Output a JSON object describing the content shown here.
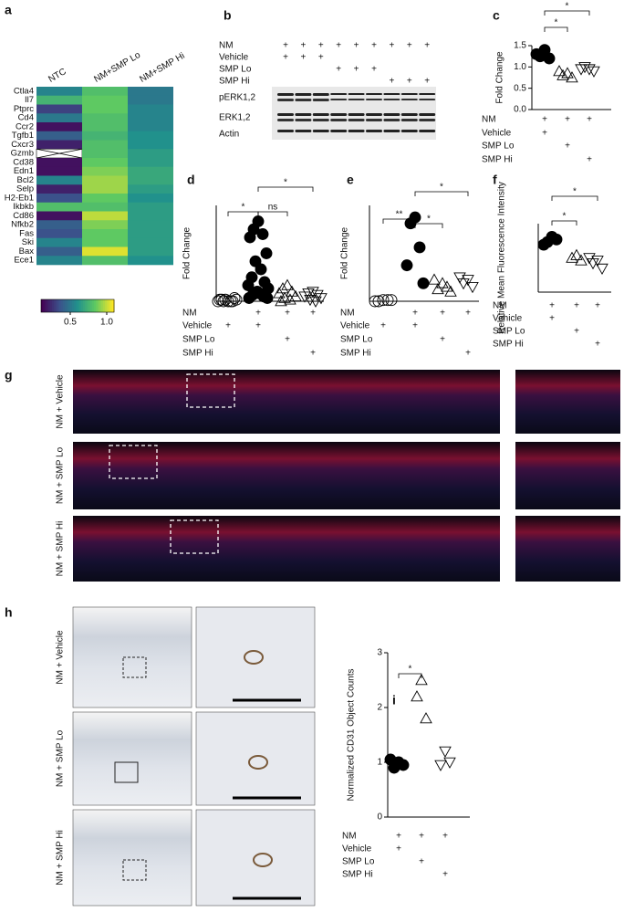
{
  "chart_data": [
    {
      "type": "heatmap",
      "panel": "a",
      "columns": [
        "NTC",
        "NM+SMP Lo",
        "NM+SMP Hi"
      ],
      "rows": [
        "Ctla4",
        "Il7",
        "Ptprc",
        "Cd4",
        "Ccr2",
        "Tgfb1",
        "Cxcr3",
        "Gzmb",
        "Cd38",
        "Edn1",
        "Bcl2",
        "Selp",
        "H2-Eb1",
        "Ikbkb",
        "Cd86",
        "Nfkb2",
        "Fas",
        "Ski",
        "Bax",
        "Ece1"
      ],
      "values": [
        [
          0.55,
          0.8,
          0.5
        ],
        [
          0.75,
          0.85,
          0.5
        ],
        [
          0.3,
          0.85,
          0.55
        ],
        [
          0.5,
          0.8,
          0.55
        ],
        [
          0.15,
          0.8,
          0.55
        ],
        [
          0.4,
          0.75,
          0.6
        ],
        [
          0.2,
          0.8,
          0.6
        ],
        [
          null,
          0.8,
          0.65
        ],
        [
          0.15,
          0.85,
          0.65
        ],
        [
          0.15,
          0.9,
          0.7
        ],
        [
          0.55,
          0.95,
          0.7
        ],
        [
          0.2,
          0.95,
          0.65
        ],
        [
          0.35,
          0.85,
          0.6
        ],
        [
          0.8,
          0.8,
          0.65
        ],
        [
          0.15,
          1.0,
          0.65
        ],
        [
          0.4,
          0.9,
          0.65
        ],
        [
          0.35,
          0.85,
          0.65
        ],
        [
          0.55,
          0.85,
          0.65
        ],
        [
          0.4,
          1.05,
          0.65
        ],
        [
          0.55,
          0.8,
          0.6
        ]
      ],
      "colormap": "viridis",
      "zlim": [
        0.1,
        1.1
      ],
      "zticks": [
        0.5,
        {
          "value": 1,
          "label": "1.0"
        }
      ]
    },
    {
      "type": "scatter",
      "panel": "c",
      "y_label": "Fold Change",
      "ylim": [
        0,
        1.5
      ],
      "yticks": [
        {
          "value": 0,
          "label": "0.0"
        },
        0.5,
        {
          "value": 1,
          "label": "1.0"
        },
        1.5
      ],
      "series": [
        {
          "marker": "circle",
          "filled": true,
          "values": [
            1.4,
            1.25,
            1.2,
            1.3
          ]
        },
        {
          "marker": "triangle-up",
          "filled": false,
          "values": [
            0.85,
            0.8,
            0.75,
            0.9
          ]
        },
        {
          "marker": "triangle-down",
          "filled": false,
          "values": [
            0.95,
            1.0,
            0.9,
            0.95
          ]
        }
      ],
      "annotations": [
        "*",
        "*"
      ],
      "conditions": [
        {
          "label": "NM",
          "marks": [
            "+",
            "+",
            "+"
          ]
        },
        {
          "label": "Vehicle",
          "marks": [
            "+",
            null,
            null
          ]
        },
        {
          "label": "SMP Lo",
          "marks": [
            null,
            "+",
            null
          ]
        },
        {
          "label": "SMP Hi",
          "marks": [
            null,
            null,
            "+"
          ]
        }
      ]
    },
    {
      "type": "scatter",
      "panel": "d",
      "y_label": "Fold Change",
      "ylim": [
        0,
        60
      ],
      "series": [
        {
          "marker": "circle",
          "filled": false,
          "values": [
            0,
            0,
            0,
            1,
            1,
            1,
            0,
            1,
            2,
            0
          ]
        },
        {
          "marker": "circle",
          "filled": true,
          "values": [
            50,
            45,
            42,
            40,
            30,
            25,
            20,
            15,
            12,
            10,
            8,
            6,
            5,
            4,
            3,
            2,
            2
          ]
        },
        {
          "marker": "triangle-up",
          "filled": false,
          "values": [
            10,
            8,
            6,
            5,
            3,
            2,
            1,
            0
          ]
        },
        {
          "marker": "triangle-down",
          "filled": false,
          "values": [
            6,
            5,
            4,
            3,
            2,
            1,
            0
          ]
        }
      ],
      "annotations": [
        "*",
        "ns",
        "*"
      ],
      "conditions": [
        {
          "label": "NM",
          "marks": [
            null,
            "+",
            "+",
            "+"
          ]
        },
        {
          "label": "Vehicle",
          "marks": [
            "+",
            "+",
            null,
            null
          ]
        },
        {
          "label": "SMP Lo",
          "marks": [
            null,
            null,
            "+",
            null
          ]
        },
        {
          "label": "SMP Hi",
          "marks": [
            null,
            null,
            null,
            "+"
          ]
        }
      ]
    },
    {
      "type": "scatter",
      "panel": "e",
      "y_label": "Fold Change",
      "ylim": [
        0,
        80
      ],
      "series": [
        {
          "marker": "circle",
          "filled": false,
          "values": [
            1,
            0,
            1,
            0,
            1
          ]
        },
        {
          "marker": "circle",
          "filled": true,
          "values": [
            70,
            65,
            45,
            30,
            15
          ]
        },
        {
          "marker": "triangle-up",
          "filled": false,
          "values": [
            15,
            10,
            12,
            18,
            8
          ]
        },
        {
          "marker": "triangle-down",
          "filled": false,
          "values": [
            18,
            15,
            12,
            20
          ]
        }
      ],
      "annotations": [
        "**",
        "*",
        "*"
      ],
      "conditions": [
        {
          "label": "NM",
          "marks": [
            null,
            "+",
            "+",
            "+"
          ]
        },
        {
          "label": "Vehicle",
          "marks": [
            "+",
            "+",
            null,
            null
          ]
        },
        {
          "label": "SMP Lo",
          "marks": [
            null,
            null,
            "+",
            null
          ]
        },
        {
          "label": "SMP Hi",
          "marks": [
            null,
            null,
            null,
            "+"
          ]
        }
      ]
    },
    {
      "type": "scatter",
      "panel": "f",
      "y_label": "Relative Mean Fluorescence Intensity",
      "ylim": [
        0,
        1.3
      ],
      "series": [
        {
          "marker": "circle",
          "filled": true,
          "values": [
            1.05,
            0.95,
            1.0,
            0.9
          ]
        },
        {
          "marker": "triangle-up",
          "filled": false,
          "values": [
            0.7,
            0.65,
            0.6
          ]
        },
        {
          "marker": "triangle-down",
          "filled": false,
          "values": [
            0.6,
            0.55,
            0.45,
            0.65
          ]
        }
      ],
      "annotations": [
        "*",
        "*"
      ],
      "conditions": [
        {
          "label": "NM",
          "marks": [
            "+",
            "+",
            "+"
          ]
        },
        {
          "label": "Vehicle",
          "marks": [
            "+",
            null,
            null
          ]
        },
        {
          "label": "SMP Lo",
          "marks": [
            null,
            "+",
            null
          ]
        },
        {
          "label": "SMP Hi",
          "marks": [
            null,
            null,
            "+"
          ]
        }
      ]
    },
    {
      "type": "scatter",
      "panel": "i",
      "y_label": "Normalized CD31 Object Counts",
      "ylim": [
        0,
        3
      ],
      "yticks": [
        0,
        1,
        2,
        3
      ],
      "series": [
        {
          "marker": "circle",
          "filled": true,
          "values": [
            1.0,
            0.9,
            0.95,
            1.05
          ]
        },
        {
          "marker": "triangle-up",
          "filled": false,
          "values": [
            2.5,
            2.2,
            1.8
          ]
        },
        {
          "marker": "triangle-down",
          "filled": false,
          "values": [
            1.2,
            0.95,
            1.0
          ]
        }
      ],
      "annotations": [
        "*"
      ],
      "conditions": [
        {
          "label": "NM",
          "marks": [
            "+",
            "+",
            "+"
          ]
        },
        {
          "label": "Vehicle",
          "marks": [
            "+",
            null,
            null
          ]
        },
        {
          "label": "SMP Lo",
          "marks": [
            null,
            "+",
            null
          ]
        },
        {
          "label": "SMP Hi",
          "marks": [
            null,
            null,
            "+"
          ]
        }
      ]
    }
  ],
  "blot": {
    "panel": "b",
    "conditions": [
      {
        "label": "NM",
        "marks": [
          "+",
          "+",
          "+",
          "+",
          "+",
          "+",
          "+",
          "+",
          "+"
        ]
      },
      {
        "label": "Vehicle",
        "marks": [
          "+",
          "+",
          "+",
          null,
          null,
          null,
          null,
          null,
          null
        ]
      },
      {
        "label": "SMP Lo",
        "marks": [
          null,
          null,
          null,
          "+",
          "+",
          "+",
          null,
          null,
          null
        ]
      },
      {
        "label": "SMP Hi",
        "marks": [
          null,
          null,
          null,
          null,
          null,
          null,
          "+",
          "+",
          "+"
        ]
      }
    ],
    "bands": [
      "pERK1,2",
      "ERK1,2",
      "Actin"
    ]
  },
  "fluorescence": {
    "panel": "g",
    "rows": [
      "NM + Vehicle",
      "NM + SMP Lo",
      "NM + SMP Hi"
    ]
  },
  "histology": {
    "panel": "h",
    "rows": [
      "NM + Vehicle",
      "NM + SMP Lo",
      "NM + SMP Hi"
    ]
  }
}
